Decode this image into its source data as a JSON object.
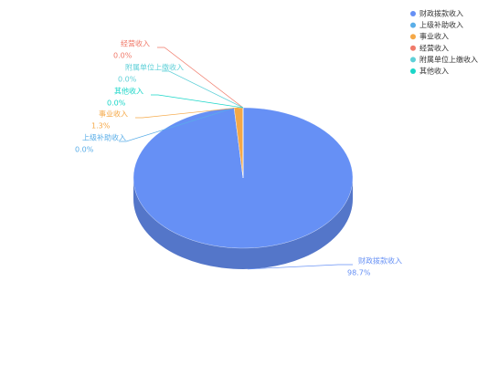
{
  "chart_data": {
    "type": "pie3d",
    "categories": [
      "财政拨款收入",
      "上级补助收入",
      "事业收入",
      "经营收入",
      "附属单位上缴收入",
      "其他收入"
    ],
    "values": [
      98.7,
      0.0,
      1.3,
      0.0,
      0.0,
      0.0
    ],
    "value_labels": [
      "98.7%",
      "0.0%",
      "1.3%",
      "0.0%",
      "0.0%",
      "0.0%"
    ],
    "colors": [
      "#6690f5",
      "#5aaee8",
      "#f5a847",
      "#f07a6a",
      "#5fd0d8",
      "#19d6c8"
    ],
    "legend": "top-right"
  }
}
